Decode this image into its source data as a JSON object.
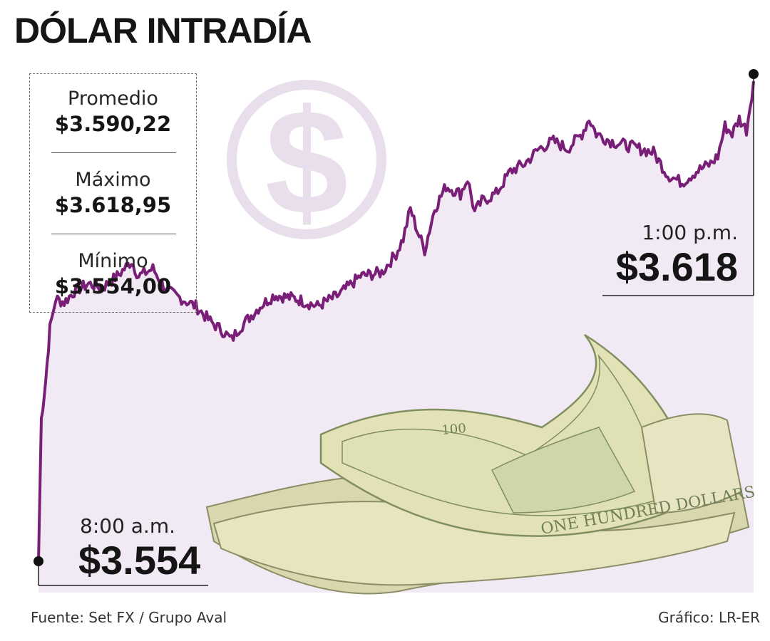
{
  "title": "DÓLAR INTRADÍA",
  "stats": {
    "avg_label": "Promedio",
    "avg_value": "$3.590,22",
    "max_label": "Máximo",
    "max_value": "$3.618,95",
    "min_label": "Mínimo",
    "min_value": "$3.554,00"
  },
  "start": {
    "time": "8:00 a.m.",
    "value": "$3.554"
  },
  "end": {
    "time": "1:00 p.m.",
    "value": "$3.618"
  },
  "source": "Fuente: Set FX / Grupo Aval",
  "credit": "Gráfico: LR-ER",
  "colors": {
    "line": "#7a1f78",
    "area": "#f1eaf4",
    "emblem": "#e9dfec",
    "bill_paper": "#e4e2b8",
    "bill_ink": "#7f8f5f"
  },
  "chart_data": {
    "type": "area",
    "x_start": "8:00 a.m.",
    "x_end": "1:00 p.m.",
    "ylim": [
      3554,
      3618.95
    ],
    "points": [
      [
        0,
        3554.0
      ],
      [
        2,
        3573.0
      ],
      [
        5,
        3578.0
      ],
      [
        8,
        3585.0
      ],
      [
        12,
        3589.0
      ],
      [
        18,
        3588.5
      ],
      [
        25,
        3590.0
      ],
      [
        35,
        3591.0
      ],
      [
        45,
        3590.5
      ],
      [
        55,
        3592.0
      ],
      [
        65,
        3594.0
      ],
      [
        70,
        3592.0
      ],
      [
        80,
        3593.0
      ],
      [
        90,
        3590.0
      ],
      [
        100,
        3589.0
      ],
      [
        110,
        3588.0
      ],
      [
        120,
        3586.0
      ],
      [
        130,
        3584.5
      ],
      [
        135,
        3583.5
      ],
      [
        140,
        3585.0
      ],
      [
        145,
        3586.0
      ],
      [
        155,
        3588.0
      ],
      [
        165,
        3589.5
      ],
      [
        180,
        3589.0
      ],
      [
        195,
        3588.0
      ],
      [
        210,
        3589.5
      ],
      [
        225,
        3592.0
      ],
      [
        240,
        3592.5
      ],
      [
        250,
        3595.0
      ],
      [
        255,
        3597.0
      ],
      [
        260,
        3601.0
      ],
      [
        265,
        3598.0
      ],
      [
        270,
        3595.5
      ],
      [
        277,
        3601.0
      ],
      [
        285,
        3604.0
      ],
      [
        295,
        3603.0
      ],
      [
        300,
        3605.0
      ],
      [
        305,
        3600.5
      ],
      [
        310,
        3602.0
      ],
      [
        320,
        3603.0
      ],
      [
        330,
        3606.0
      ],
      [
        340,
        3607.0
      ],
      [
        350,
        3609.0
      ],
      [
        360,
        3610.0
      ],
      [
        370,
        3609.0
      ],
      [
        380,
        3611.0
      ],
      [
        385,
        3613.0
      ],
      [
        390,
        3611.0
      ],
      [
        400,
        3610.0
      ],
      [
        410,
        3609.5
      ],
      [
        420,
        3609.0
      ],
      [
        430,
        3608.5
      ],
      [
        440,
        3605.5
      ],
      [
        450,
        3604.5
      ],
      [
        460,
        3606.0
      ],
      [
        470,
        3607.0
      ],
      [
        475,
        3608.0
      ],
      [
        480,
        3612.0
      ],
      [
        485,
        3611.0
      ],
      [
        490,
        3613.0
      ],
      [
        495,
        3611.5
      ],
      [
        500,
        3618.0
      ]
    ]
  }
}
